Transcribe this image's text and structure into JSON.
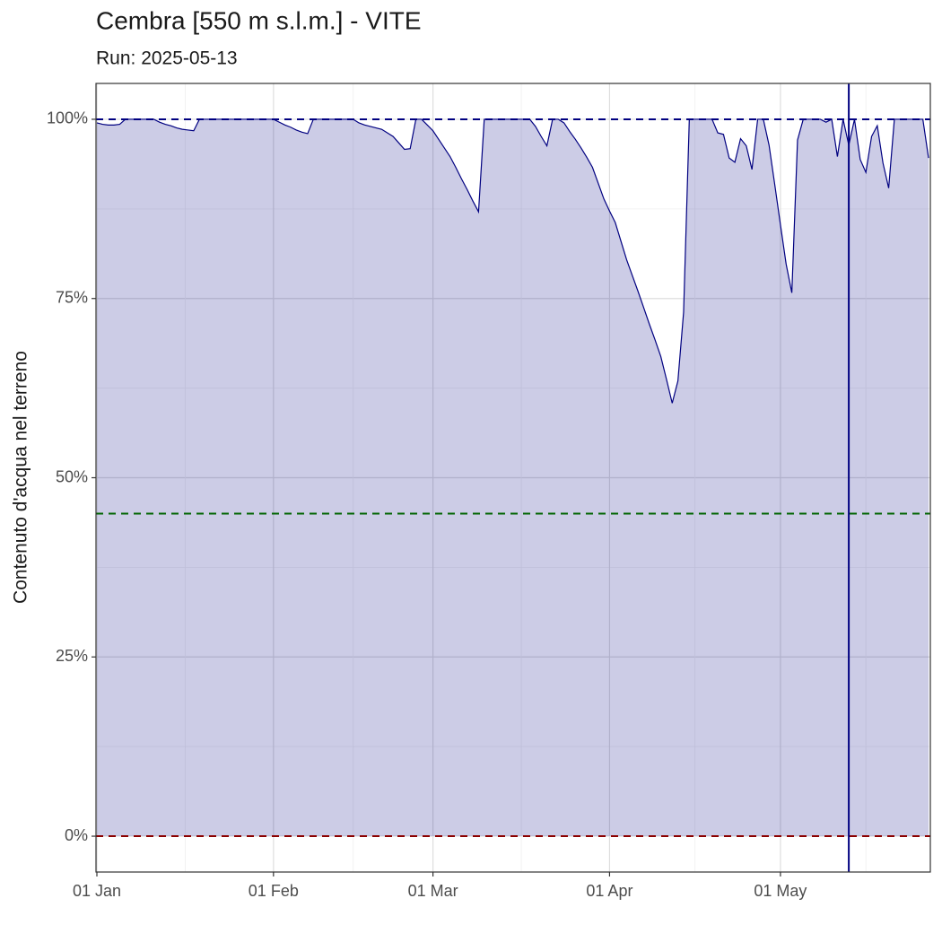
{
  "chart_data": {
    "type": "area",
    "title": "Cembra [550 m s.l.m.] - VITE",
    "subtitle": "Run: 2025-05-13",
    "y_label": "Contenuto d'acqua nel terreno",
    "x": [
      "01-01",
      "01-02",
      "01-03",
      "01-04",
      "01-05",
      "01-06",
      "01-07",
      "01-08",
      "01-09",
      "01-10",
      "01-11",
      "01-12",
      "01-13",
      "01-14",
      "01-15",
      "01-16",
      "01-17",
      "01-18",
      "01-19",
      "01-20",
      "01-21",
      "01-22",
      "01-23",
      "01-24",
      "01-25",
      "01-26",
      "01-27",
      "01-28",
      "01-29",
      "01-30",
      "01-31",
      "02-01",
      "02-02",
      "02-03",
      "02-04",
      "02-05",
      "02-06",
      "02-07",
      "02-08",
      "02-09",
      "02-10",
      "02-11",
      "02-12",
      "02-13",
      "02-14",
      "02-15",
      "02-16",
      "02-17",
      "02-18",
      "02-19",
      "02-20",
      "02-21",
      "02-22",
      "02-23",
      "02-24",
      "02-25",
      "02-26",
      "02-27",
      "02-28",
      "03-01",
      "03-02",
      "03-03",
      "03-04",
      "03-05",
      "03-06",
      "03-07",
      "03-08",
      "03-09",
      "03-10",
      "03-11",
      "03-12",
      "03-13",
      "03-14",
      "03-15",
      "03-16",
      "03-17",
      "03-18",
      "03-19",
      "03-20",
      "03-21",
      "03-22",
      "03-23",
      "03-24",
      "03-25",
      "03-26",
      "03-27",
      "03-28",
      "03-29",
      "03-30",
      "03-31",
      "04-01",
      "04-02",
      "04-03",
      "04-04",
      "04-05",
      "04-06",
      "04-07",
      "04-08",
      "04-09",
      "04-10",
      "04-11",
      "04-12",
      "04-13",
      "04-14",
      "04-15",
      "04-16",
      "04-17",
      "04-18",
      "04-19",
      "04-20",
      "04-21",
      "04-22",
      "04-23",
      "04-24",
      "04-25",
      "04-26",
      "04-27",
      "04-28",
      "04-29",
      "04-30",
      "05-01",
      "05-02",
      "05-03",
      "05-04",
      "05-05",
      "05-06",
      "05-07",
      "05-08",
      "05-09",
      "05-10",
      "05-11",
      "05-12",
      "05-13",
      "05-14",
      "05-15",
      "05-16",
      "05-17",
      "05-18",
      "05-19",
      "05-20",
      "05-21",
      "05-22",
      "05-23",
      "05-24",
      "05-25",
      "05-26",
      "05-27"
    ],
    "values": [
      99.5,
      99.3,
      99.2,
      99.2,
      99.3,
      100,
      100,
      100,
      100,
      100,
      100,
      99.6,
      99.3,
      99.1,
      98.8,
      98.6,
      98.5,
      98.4,
      100,
      100,
      100,
      100,
      100,
      100,
      100,
      100,
      100,
      100,
      100,
      100,
      100,
      100,
      99.6,
      99.2,
      98.9,
      98.5,
      98.2,
      98.0,
      100,
      100,
      100,
      100,
      100,
      100,
      100,
      100,
      99.5,
      99.2,
      99.0,
      98.8,
      98.6,
      98.1,
      97.6,
      96.7,
      95.8,
      95.9,
      100,
      100,
      99.2,
      98.4,
      97.2,
      96.0,
      94.8,
      93.3,
      91.7,
      90.2,
      88.6,
      87.1,
      100,
      100,
      100,
      100,
      100,
      100,
      100,
      100,
      100,
      99.0,
      97.6,
      96.3,
      100,
      100,
      99.5,
      98.3,
      97.2,
      96.0,
      94.7,
      93.3,
      91.1,
      88.9,
      87.2,
      85.6,
      83.0,
      80.4,
      78.2,
      76.0,
      73.7,
      71.4,
      69.2,
      66.9,
      63.7,
      60.4,
      63.5,
      73.1,
      100,
      100,
      100,
      100,
      100,
      98.1,
      97.9,
      94.6,
      94.0,
      97.3,
      96.3,
      93.0,
      100,
      100,
      96.4,
      90.9,
      85.3,
      79.8,
      75.8,
      97.1,
      100,
      100,
      100,
      100,
      99.6,
      100,
      94.8,
      100,
      96.4,
      100,
      94.4,
      92.6,
      97.6,
      99.1,
      93.9,
      90.4,
      100,
      100,
      100,
      100,
      100,
      100,
      94.6
    ],
    "color": "#000080",
    "fill_opacity": 0.2,
    "xlim": [
      "01-01",
      "05-27"
    ],
    "xticks": [
      {
        "value": "01-01",
        "label": "01 Jan"
      },
      {
        "value": "02-01",
        "label": "01 Feb"
      },
      {
        "value": "03-01",
        "label": "01 Mar"
      },
      {
        "value": "04-01",
        "label": "01 Apr"
      },
      {
        "value": "05-01",
        "label": "01 May"
      }
    ],
    "ylim": [
      -5,
      105
    ],
    "yticks": [
      {
        "value": 0,
        "label": "0%"
      },
      {
        "value": 25,
        "label": "25%"
      },
      {
        "value": 50,
        "label": "50%"
      },
      {
        "value": 75,
        "label": "75%"
      },
      {
        "value": 100,
        "label": "100%"
      }
    ],
    "grid": true,
    "hlines": [
      {
        "value": 100,
        "color": "#000080"
      },
      {
        "value": 45,
        "color": "#006400"
      },
      {
        "value": 0,
        "color": "#8b0000"
      }
    ],
    "vline": {
      "value": "05-13",
      "color": "#000080"
    }
  }
}
